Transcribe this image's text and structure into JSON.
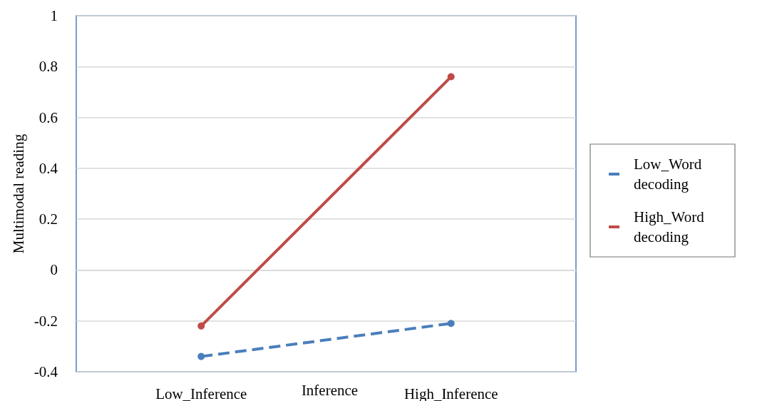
{
  "chart_data": {
    "type": "line",
    "xlabel": "Inference",
    "ylabel": "Multimodal reading",
    "categories": [
      "Low_Inference",
      "High_Inference"
    ],
    "series": [
      {
        "name": "Low_Word decoding",
        "color": "#4a7ebb",
        "values": [
          -0.34,
          -0.21
        ],
        "line_style": "dashed"
      },
      {
        "name": "High_Word decoding",
        "color": "#be4b48",
        "values": [
          -0.22,
          0.76
        ],
        "line_style": "solid"
      }
    ],
    "ylim": [
      -0.4,
      1
    ],
    "yticks": [
      -0.4,
      -0.2,
      0,
      0.2,
      0.4,
      0.6,
      0.8,
      1
    ],
    "grid": "y",
    "legend": "right",
    "marker": "circle"
  }
}
